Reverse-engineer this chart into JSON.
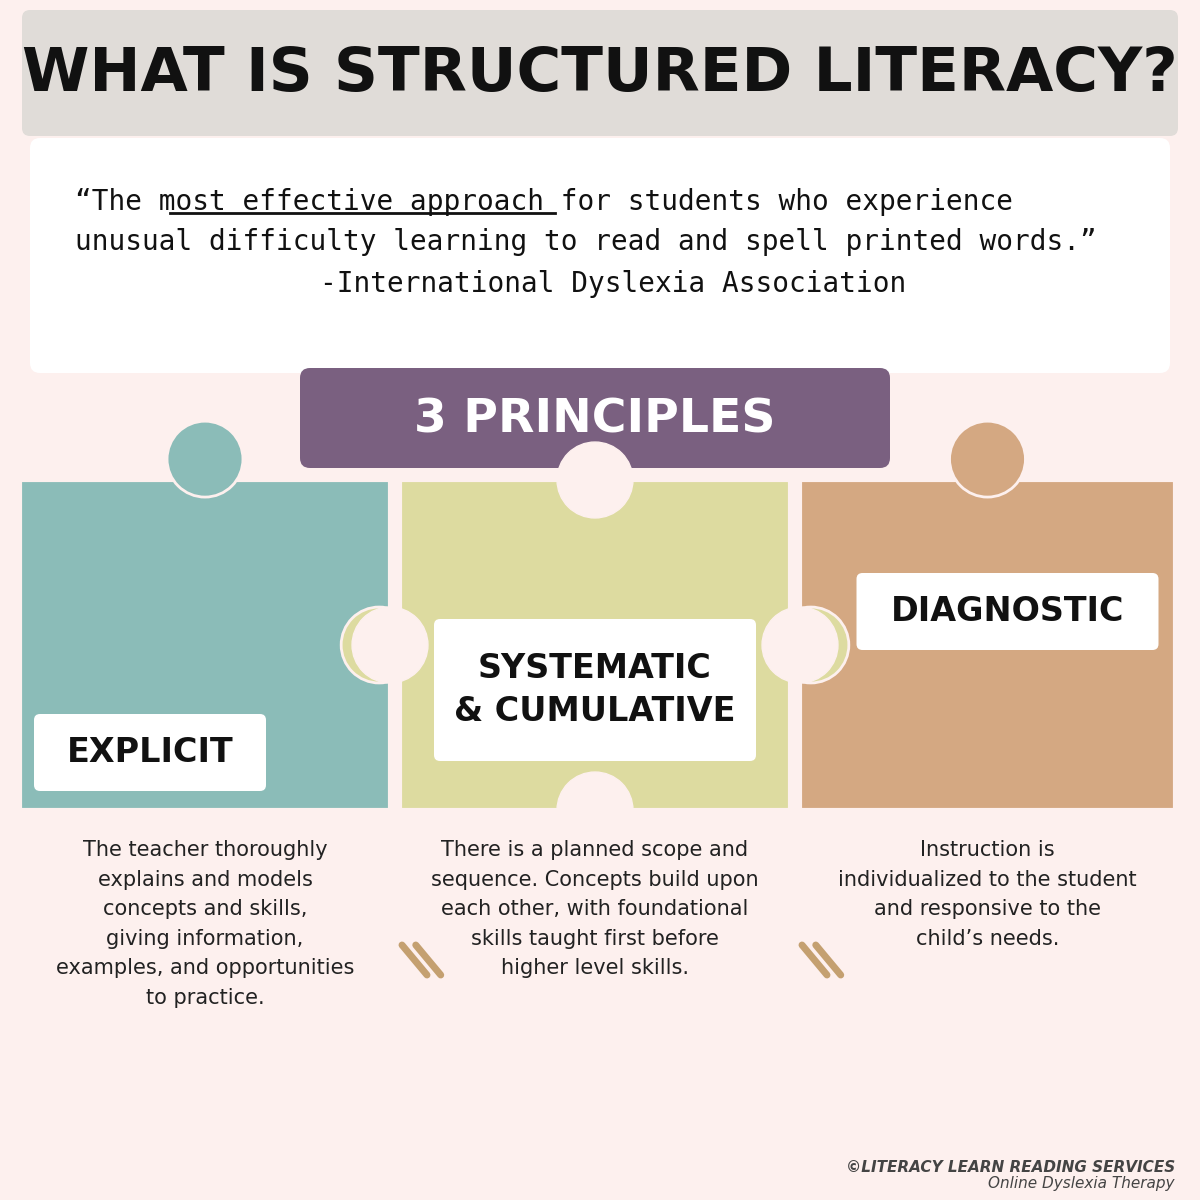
{
  "bg_color": "#fdf0ee",
  "title_bg_color": "#e0dcd8",
  "title_text": "WHAT IS STRUCTURED LITERACY?",
  "title_fontsize": 44,
  "quote_bg_color": "#ffffff",
  "quote_line1": "“The most effective approach for students who experience",
  "quote_line2": "unusual difficulty learning to read and spell printed words.”",
  "quote_line3": "-International Dyslexia Association",
  "quote_fontsize": 20,
  "underline_phrase": "most effective approach",
  "principles_bg_color": "#7a6080",
  "principles_text": "3 PRINCIPLES",
  "principles_fontsize": 34,
  "puzzle_color_left": "#8bbcb8",
  "puzzle_color_mid": "#dddba0",
  "puzzle_color_right": "#d4a882",
  "puzzle_border_color": "#fdf0ee",
  "label_bg_color": "#ffffff",
  "label1_text": "EXPLICIT",
  "label2_text": "SYSTEMATIC\n& CUMULATIVE",
  "label3_text": "DIAGNOSTIC",
  "label_fontsize": 24,
  "desc1": "The teacher thoroughly\nexplains and models\nconcepts and skills,\ngiving information,\nexamples, and opportunities\nto practice.",
  "desc2": "There is a planned scope and\nsequence. Concepts build upon\neach other, with foundational\nskills taught first before\nhigher level skills.",
  "desc3": "Instruction is\nindividualized to the student\nand responsive to the\nchild’s needs.",
  "desc_fontsize": 15,
  "arrow_color": "#c4a070",
  "footer_text1": "©LITERACY LEARN READING SERVICES",
  "footer_text2": "Online Dyslexia Therapy",
  "footer_fontsize": 11
}
